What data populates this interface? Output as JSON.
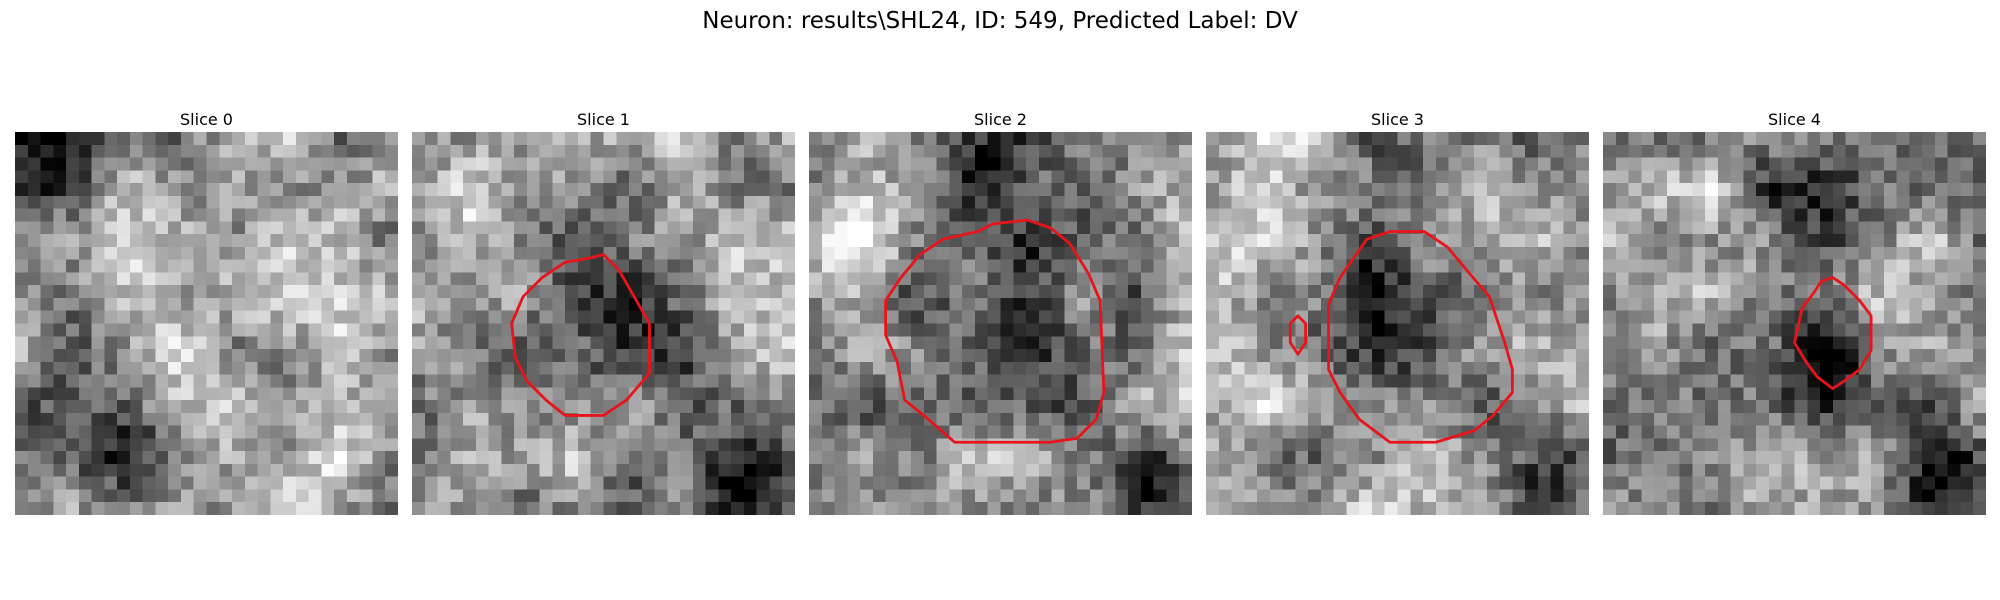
{
  "figure": {
    "title": "Neuron: results\\SHL24, ID: 549, Predicted Label: DV",
    "contour_color": "#e8141c",
    "colormap": "gray",
    "panels": [
      {
        "label": "Slice 0",
        "seed": 11,
        "blobs": [
          [
            0.1,
            0.04,
            0.14,
            -0.45
          ],
          [
            0.3,
            0.78,
            0.16,
            -0.4
          ],
          [
            0.08,
            0.72,
            0.14,
            -0.3
          ],
          [
            0.75,
            0.85,
            0.18,
            0.25
          ],
          [
            0.45,
            0.4,
            0.25,
            0.22
          ]
        ],
        "contours": []
      },
      {
        "label": "Slice 1",
        "seed": 23,
        "blobs": [
          [
            0.5,
            0.55,
            0.2,
            -0.35
          ],
          [
            0.85,
            0.92,
            0.12,
            -0.45
          ],
          [
            0.2,
            0.2,
            0.18,
            0.1
          ]
        ],
        "contours": [
          [
            [
              0.46,
              0.33
            ],
            [
              0.5,
              0.32
            ],
            [
              0.54,
              0.36
            ],
            [
              0.58,
              0.43
            ],
            [
              0.62,
              0.5
            ],
            [
              0.62,
              0.63
            ],
            [
              0.56,
              0.7
            ],
            [
              0.5,
              0.74
            ],
            [
              0.4,
              0.74
            ],
            [
              0.35,
              0.7
            ],
            [
              0.3,
              0.65
            ],
            [
              0.27,
              0.59
            ],
            [
              0.26,
              0.5
            ],
            [
              0.29,
              0.43
            ],
            [
              0.34,
              0.38
            ],
            [
              0.4,
              0.34
            ]
          ]
        ]
      },
      {
        "label": "Slice 2",
        "seed": 37,
        "blobs": [
          [
            0.52,
            0.5,
            0.26,
            -0.4
          ],
          [
            0.5,
            0.1,
            0.12,
            -0.3
          ],
          [
            0.92,
            0.9,
            0.12,
            -0.45
          ],
          [
            0.1,
            0.3,
            0.12,
            0.25
          ]
        ],
        "contours": [
          [
            [
              0.44,
              0.26
            ],
            [
              0.48,
              0.24
            ],
            [
              0.57,
              0.23
            ],
            [
              0.63,
              0.25
            ],
            [
              0.68,
              0.29
            ],
            [
              0.73,
              0.37
            ],
            [
              0.76,
              0.44
            ],
            [
              0.77,
              0.68
            ],
            [
              0.75,
              0.75
            ],
            [
              0.7,
              0.8
            ],
            [
              0.63,
              0.81
            ],
            [
              0.38,
              0.81
            ],
            [
              0.3,
              0.74
            ],
            [
              0.25,
              0.7
            ],
            [
              0.23,
              0.6
            ],
            [
              0.2,
              0.53
            ],
            [
              0.2,
              0.44
            ],
            [
              0.24,
              0.38
            ],
            [
              0.29,
              0.32
            ],
            [
              0.35,
              0.28
            ]
          ]
        ]
      },
      {
        "label": "Slice 3",
        "seed": 41,
        "blobs": [
          [
            0.52,
            0.52,
            0.22,
            -0.45
          ],
          [
            0.52,
            0.1,
            0.14,
            -0.3
          ],
          [
            0.9,
            0.88,
            0.12,
            -0.4
          ],
          [
            0.15,
            0.7,
            0.16,
            0.25
          ]
        ],
        "contours": [
          [
            [
              0.42,
              0.28
            ],
            [
              0.48,
              0.26
            ],
            [
              0.57,
              0.26
            ],
            [
              0.63,
              0.3
            ],
            [
              0.68,
              0.36
            ],
            [
              0.74,
              0.43
            ],
            [
              0.78,
              0.55
            ],
            [
              0.8,
              0.62
            ],
            [
              0.8,
              0.68
            ],
            [
              0.75,
              0.74
            ],
            [
              0.7,
              0.78
            ],
            [
              0.6,
              0.81
            ],
            [
              0.48,
              0.81
            ],
            [
              0.4,
              0.75
            ],
            [
              0.35,
              0.68
            ],
            [
              0.32,
              0.62
            ],
            [
              0.32,
              0.45
            ],
            [
              0.35,
              0.38
            ]
          ],
          [
            [
              0.24,
              0.48
            ],
            [
              0.26,
              0.5
            ],
            [
              0.26,
              0.55
            ],
            [
              0.24,
              0.58
            ],
            [
              0.22,
              0.55
            ],
            [
              0.22,
              0.5
            ]
          ]
        ]
      },
      {
        "label": "Slice 4",
        "seed": 53,
        "blobs": [
          [
            0.58,
            0.6,
            0.14,
            -0.42
          ],
          [
            0.55,
            0.15,
            0.15,
            -0.35
          ],
          [
            0.9,
            0.9,
            0.14,
            -0.4
          ],
          [
            0.2,
            0.25,
            0.14,
            0.15
          ]
        ],
        "contours": [
          [
            [
              0.57,
              0.39
            ],
            [
              0.6,
              0.38
            ],
            [
              0.63,
              0.4
            ],
            [
              0.67,
              0.44
            ],
            [
              0.7,
              0.48
            ],
            [
              0.7,
              0.57
            ],
            [
              0.67,
              0.62
            ],
            [
              0.63,
              0.65
            ],
            [
              0.6,
              0.67
            ],
            [
              0.56,
              0.64
            ],
            [
              0.53,
              0.6
            ],
            [
              0.5,
              0.55
            ],
            [
              0.52,
              0.46
            ],
            [
              0.55,
              0.42
            ]
          ]
        ]
      }
    ]
  }
}
